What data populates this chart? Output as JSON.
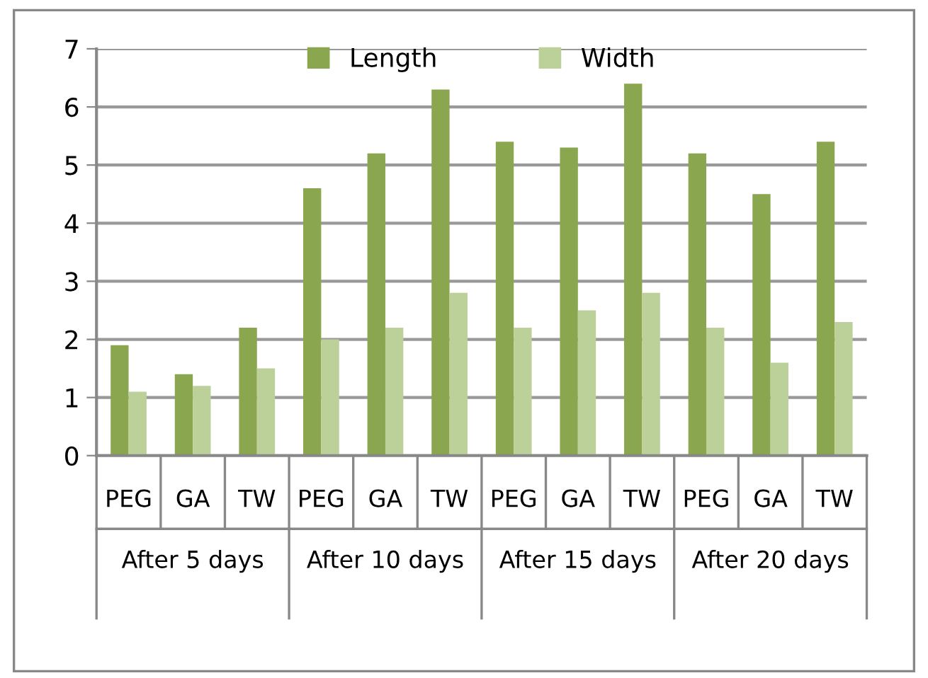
{
  "chart_data": {
    "type": "bar",
    "categories": [
      "PEG",
      "GA",
      "TW",
      "PEG",
      "GA",
      "TW",
      "PEG",
      "GA",
      "TW",
      "PEG",
      "GA",
      "TW"
    ],
    "series": [
      {
        "name": "Length",
        "color": "#8aa64e",
        "values": [
          1.9,
          1.4,
          2.2,
          4.6,
          5.2,
          6.3,
          5.4,
          5.3,
          6.4,
          5.2,
          4.5,
          5.4
        ]
      },
      {
        "name": "Width",
        "color": "#bcd09a",
        "values": [
          1.1,
          1.2,
          1.5,
          2.0,
          2.2,
          2.8,
          2.2,
          2.5,
          2.8,
          2.2,
          1.6,
          2.3
        ]
      }
    ],
    "annotations": [
      "After 5 days",
      "After 10 days",
      "After 15 days",
      "After 20 days"
    ],
    "ylim": [
      0,
      7
    ],
    "yticks": [
      0,
      1,
      2,
      3,
      4,
      5,
      6,
      7
    ],
    "grid": "y",
    "legend": "top"
  }
}
